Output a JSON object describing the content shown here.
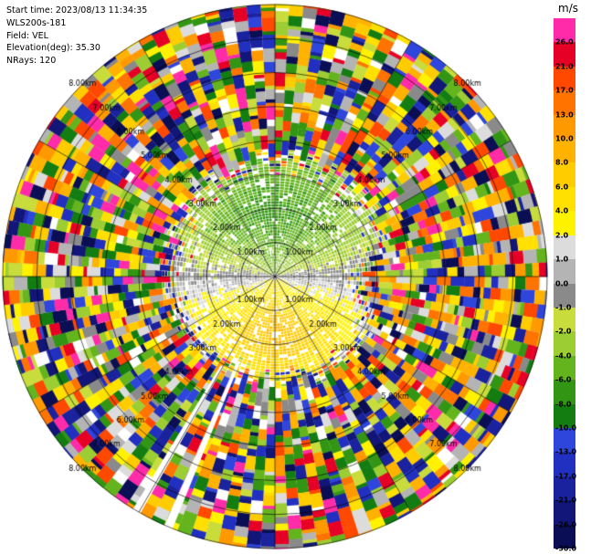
{
  "header": {
    "lines": [
      "Start time: 2023/08/13 11:34:35",
      "WLS200s-181",
      "Field: VEL",
      "Elevation(deg): 35.30",
      "NRays: 120"
    ]
  },
  "colorbar": {
    "title": "m/s",
    "tick_labels": [
      "26.0",
      "21.0",
      "17.0",
      "13.0",
      "10.0",
      "8.0",
      "6.0",
      "4.0",
      "2.0",
      "1.0",
      "0.0",
      "-1.0",
      "-2.0",
      "-4.0",
      "-6.0",
      "-8.0",
      "-10.0",
      "-13.0",
      "-17.0",
      "-21.0",
      "-26.0",
      "-30.0"
    ]
  },
  "chart_data": {
    "type": "heatmap",
    "subtype": "doppler-lidar-ppi-scan",
    "title": "",
    "instrument": "WLS200s-181",
    "field": "VEL",
    "units": "m/s",
    "start_time": "2023/08/13 11:34:35",
    "elevation_deg": 35.3,
    "nrays": 120,
    "ray_width_deg": 3,
    "azimuth_line_interval_deg": 30,
    "max_range_km": 8.0,
    "range_rings_km": [
      1,
      2,
      3,
      4,
      5,
      6,
      7,
      8
    ],
    "ring_label_suffix": "km",
    "color_levels": [
      30,
      26,
      21,
      17,
      13,
      10,
      8,
      6,
      4,
      2,
      1,
      0,
      -1,
      -2,
      -4,
      -6,
      -8,
      -10,
      -13,
      -17,
      -21,
      -26,
      -30
    ],
    "color_scale": [
      "#ff2ba8",
      "#e60026",
      "#ff4800",
      "#ff7300",
      "#ff9900",
      "#ffb300",
      "#ffcc00",
      "#ffe000",
      "#fff200",
      "#dcdcdc",
      "#b4b4b4",
      "#8a8a8a",
      "#c8dc3c",
      "#9ccd32",
      "#64b41e",
      "#329614",
      "#147d12",
      "#2e46dc",
      "#2130c0",
      "#1a229e",
      "#111678",
      "#0a0e55"
    ],
    "pattern": {
      "description": "Coherent wind dipole inside ~3.3 km: negative radial velocities (green, -2 to -8 m/s) across the northern half, positive velocities (yellow/orange, +2 to +10 m/s) across the southern half, near-zero grey band along the east-west axis; fully random aliased noise colours from ~3.3 km out to 8 km; noise intrudes closer (~2.3 km) on the eastern side; two white no-data rays toward the south-southwest.",
      "coherent_core": {
        "max_range_km": 3.3,
        "inbound_sector": "north, green, -2 to -8 m/s",
        "outbound_sector": "south, yellow/orange, +2 to +10 m/s",
        "zero_band": "east-west, grey, within ±1 m/s"
      },
      "noise_annulus_km": [
        3.3,
        8.0
      ],
      "white_norays": [
        {
          "azimuth_deg": 203.0,
          "start_km": 2.7
        },
        {
          "azimuth_deg": 210.5,
          "start_km": 3.05
        }
      ]
    },
    "render_seed": 20230813
  }
}
